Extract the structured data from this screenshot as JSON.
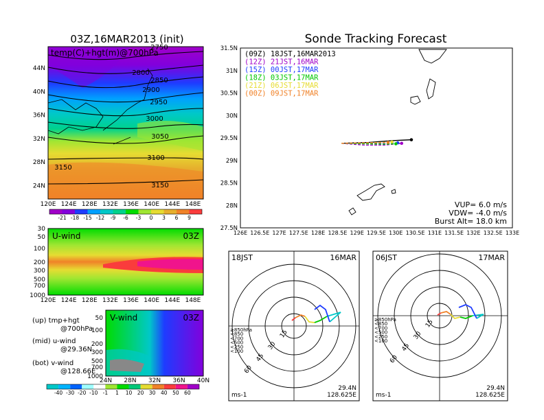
{
  "left_panel": {
    "title": "03Z,16MAR2013 (init)",
    "map_label": "temp(C)+hgt(m)@700hPa",
    "lon_ticks": [
      "120E",
      "124E",
      "128E",
      "132E",
      "136E",
      "140E",
      "144E",
      "148E"
    ],
    "lat_ticks": [
      "44N",
      "40N",
      "36N",
      "32N",
      "28N",
      "24N"
    ],
    "contours": [
      "2750",
      "2800",
      "2850",
      "2900",
      "2950",
      "3000",
      "3050",
      "3100",
      "3150",
      "3150"
    ],
    "temp_colorbar": [
      "-21",
      "-18",
      "-15",
      "-12",
      "-9",
      "-6",
      "-3",
      "0",
      "3",
      "6",
      "9"
    ],
    "temp_colors": [
      "#a000c8",
      "#8200dc",
      "#1e3cff",
      "#00a0ff",
      "#00c8c8",
      "#00d28c",
      "#00dc00",
      "#a0e632",
      "#e6dc32",
      "#e6af2d",
      "#f08228",
      "#fa3c3c"
    ]
  },
  "u_panel": {
    "label": "U-wind",
    "time": "03Z",
    "p_ticks": [
      "30",
      "50",
      "100",
      "200",
      "300",
      "500",
      "700",
      "1000"
    ],
    "lon_ticks": [
      "120E",
      "124E",
      "128E",
      "132E",
      "136E",
      "140E",
      "144E",
      "148E"
    ]
  },
  "v_panel": {
    "label": "V-wind",
    "time": "03Z",
    "p_ticks": [
      "50",
      "100",
      "200",
      "300",
      "500",
      "700",
      "1000"
    ],
    "lat_ticks": [
      "24N",
      "28N",
      "32N",
      "36N",
      "40N"
    ]
  },
  "notes": {
    "up1": "(up) tmp+hgt",
    "up2": "@700hPa",
    "mid1": "(mid) u-wind",
    "mid2": "@29.36N",
    "bot1": "(bot) v-wind",
    "bot2": "@128.66E"
  },
  "wind_colorbar": {
    "labels": [
      "-40",
      "-30",
      "-20",
      "-10",
      "-1",
      "1",
      "10",
      "20",
      "30",
      "40",
      "50",
      "60"
    ],
    "colors": [
      "#00c8c8",
      "#00b4ff",
      "#0064ff",
      "#a0ffff",
      "#ffffff",
      "#a0e632",
      "#00dc00",
      "#00c878",
      "#e6dc32",
      "#f08228",
      "#fa3c3c",
      "#f0148c",
      "#a000c8"
    ]
  },
  "tracking": {
    "title": "Sonde Tracking Forecast",
    "legend": [
      {
        "text": "(09Z)  18JST,16MAR2013",
        "color": "#000000"
      },
      {
        "text": "(12Z)  21JST,16MAR",
        "color": "#a000c8"
      },
      {
        "text": "(15Z)  00JST,17MAR",
        "color": "#1e3cff"
      },
      {
        "text": "(18Z)  03JST,17MAR",
        "color": "#00c800"
      },
      {
        "text": "(21Z)  06JST,17MAR",
        "color": "#e6dc32"
      },
      {
        "text": "(00Z)  09JST,17MAR",
        "color": "#f08228"
      }
    ],
    "lat_ticks": [
      "31.5N",
      "31N",
      "30.5N",
      "30N",
      "29.5N",
      "29N",
      "28.5N",
      "28N",
      "27.5N"
    ],
    "lon_ticks": [
      "126E",
      "126.5E",
      "127E",
      "127.5E",
      "128E",
      "128.5E",
      "129E",
      "129.5E",
      "130E",
      "130.5E",
      "131E",
      "131.5E",
      "132E",
      "132.5E",
      "133E"
    ],
    "params": [
      "VUP=  6.0  m/s",
      "VDW=  -4.0  m/s",
      "Burst Alt=  18.0  km"
    ]
  },
  "hodo_left": {
    "time": "18JST",
    "date": "16MAR",
    "rings": [
      "15",
      "30",
      "45",
      "60"
    ],
    "levels": [
      {
        "text": "≥850hPa",
        "color": "#fa3c3c"
      },
      {
        "text": "<850",
        "color": "#f08228"
      },
      {
        "text": "<700",
        "color": "#e6dc32"
      },
      {
        "text": "<500",
        "color": "#00c800"
      },
      {
        "text": "<250",
        "color": "#00c8c8"
      },
      {
        "text": "<100",
        "color": "#1e3cff"
      }
    ],
    "unit": "ms-1",
    "lat": "29.4N",
    "lon": "128.625E"
  },
  "hodo_right": {
    "time": "06JST",
    "date": "17MAR",
    "rings": [
      "15",
      "30",
      "45",
      "60"
    ],
    "levels": [
      {
        "text": "≥850hPa",
        "color": "#fa3c3c"
      },
      {
        "text": "<850",
        "color": "#f08228"
      },
      {
        "text": "<700",
        "color": "#e6dc32"
      },
      {
        "text": "<500",
        "color": "#00c800"
      },
      {
        "text": "<250",
        "color": "#00c8c8"
      },
      {
        "text": "<100",
        "color": "#1e3cff"
      }
    ],
    "unit": "ms-1",
    "lat": "29.4N",
    "lon": "128.625E"
  },
  "chart_data": [
    {
      "type": "heatmap",
      "title": "03Z,16MAR2013 (init)",
      "subtitle": "temp(C)+hgt(m)@700hPa",
      "xlim": [
        120,
        150
      ],
      "ylim": [
        22,
        48
      ],
      "contour_levels": [
        2750,
        2800,
        2850,
        2900,
        2950,
        3000,
        3050,
        3100,
        3150
      ]
    },
    {
      "type": "line",
      "title": "Sonde Tracking Forecast",
      "xlim": [
        126,
        133
      ],
      "ylim": [
        27.5,
        31.5
      ],
      "series": [
        {
          "name": "(09Z)  18JST,16MAR2013",
          "x": [
            128.6,
            129.3,
            129.9,
            130.4
          ],
          "y": [
            29.38,
            29.4,
            29.44,
            29.46
          ]
        },
        {
          "name": "(12Z)  21JST,16MAR",
          "x": [
            128.6,
            129.2,
            129.7,
            130.15
          ],
          "y": [
            29.38,
            29.34,
            29.34,
            29.38
          ]
        },
        {
          "name": "(15Z)  00JST,17MAR",
          "x": [
            128.6,
            129.2,
            129.7,
            130.05
          ],
          "y": [
            29.38,
            29.38,
            29.37,
            29.39
          ]
        },
        {
          "name": "(18Z)  03JST,17MAR",
          "x": [
            128.6,
            129.2,
            129.7,
            130.0
          ],
          "y": [
            29.38,
            29.37,
            29.36,
            29.37
          ]
        },
        {
          "name": "(21Z)  06JST,17MAR",
          "x": [
            128.6,
            129.1,
            129.6,
            129.9
          ],
          "y": [
            29.38,
            29.39,
            29.4,
            29.41
          ]
        },
        {
          "name": "(00Z)  09JST,17MAR",
          "x": [
            128.6,
            129.1,
            129.5,
            129.8
          ],
          "y": [
            29.38,
            29.39,
            29.39,
            29.4
          ]
        }
      ]
    }
  ]
}
